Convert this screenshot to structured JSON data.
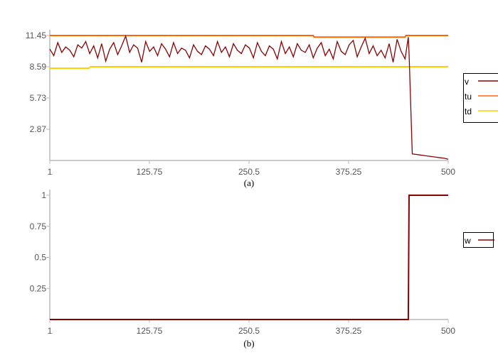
{
  "chart_data": [
    {
      "type": "line",
      "caption": "(a)",
      "xlim": [
        1,
        500
      ],
      "ylim": [
        0,
        11.45
      ],
      "xticks": [
        "1",
        "125.75",
        "250.5",
        "375.25",
        "500"
      ],
      "yticks": [
        "2.87",
        "5.73",
        "8.59",
        "11.45"
      ],
      "legend_placement": "right",
      "series": [
        {
          "name": "v",
          "color": "#8b0000",
          "x": [
            1,
            6,
            11,
            16,
            21,
            26,
            31,
            36,
            41,
            46,
            51,
            56,
            61,
            66,
            71,
            76,
            81,
            86,
            91,
            96,
            101,
            106,
            111,
            116,
            121,
            126,
            131,
            136,
            141,
            146,
            151,
            156,
            161,
            166,
            171,
            176,
            181,
            186,
            191,
            196,
            201,
            206,
            211,
            216,
            221,
            226,
            231,
            236,
            241,
            246,
            251,
            256,
            261,
            266,
            271,
            276,
            281,
            286,
            291,
            296,
            301,
            306,
            311,
            316,
            321,
            326,
            331,
            336,
            341,
            346,
            351,
            356,
            361,
            366,
            371,
            376,
            381,
            386,
            391,
            396,
            401,
            406,
            411,
            416,
            421,
            426,
            431,
            436,
            441,
            446,
            450,
            451,
            455,
            460,
            465,
            470,
            475,
            480,
            485,
            490,
            495,
            500
          ],
          "y": [
            10.2,
            9.6,
            10.8,
            9.9,
            10.4,
            10.1,
            9.5,
            10.6,
            10.3,
            10.9,
            9.8,
            10.5,
            9.4,
            10.7,
            9.1,
            10.2,
            10.8,
            9.7,
            10.5,
            11.4,
            9.9,
            10.6,
            10.3,
            9.0,
            10.9,
            10.0,
            10.4,
            9.6,
            10.7,
            10.2,
            9.5,
            10.8,
            9.8,
            10.3,
            10.1,
            9.4,
            10.6,
            10.0,
            9.7,
            10.5,
            10.2,
            9.6,
            10.9,
            9.9,
            10.4,
            9.5,
            10.7,
            10.1,
            9.8,
            10.6,
            10.3,
            9.4,
            10.8,
            10.0,
            9.6,
            10.5,
            10.2,
            9.3,
            10.9,
            9.8,
            10.4,
            9.5,
            10.7,
            10.1,
            9.9,
            10.6,
            9.4,
            10.3,
            10.8,
            9.6,
            10.2,
            9.3,
            10.9,
            10.0,
            9.7,
            10.6,
            11.0,
            9.5,
            10.4,
            11.2,
            9.8,
            10.5,
            9.6,
            10.1,
            9.4,
            10.7,
            9.0,
            11.1,
            10.0,
            9.3,
            11.3,
            9.8,
            0.6,
            0.55,
            0.5,
            0.45,
            0.4,
            0.35,
            0.3,
            0.25,
            0.2,
            0.12
          ]
        },
        {
          "name": "tu",
          "color": "#ff6600",
          "x": [
            1,
            331,
            332,
            446,
            447,
            500
          ],
          "y": [
            11.45,
            11.45,
            11.3,
            11.3,
            11.45,
            11.45
          ]
        },
        {
          "name": "td",
          "color": "#ffcc00",
          "x": [
            1,
            50,
            52,
            500
          ],
          "y": [
            8.45,
            8.45,
            8.59,
            8.59
          ]
        }
      ]
    },
    {
      "type": "line",
      "caption": "(b)",
      "xlim": [
        1,
        500
      ],
      "ylim": [
        0,
        1
      ],
      "xticks": [
        "1",
        "125.75",
        "250.5",
        "375.25",
        "500"
      ],
      "yticks": [
        "0.25",
        "0.5",
        "0.75",
        "1"
      ],
      "legend_placement": "right",
      "series": [
        {
          "name": "w",
          "color": "#8b0000",
          "x": [
            1,
            450,
            451,
            500
          ],
          "y": [
            0,
            0,
            1,
            1
          ]
        }
      ]
    }
  ]
}
